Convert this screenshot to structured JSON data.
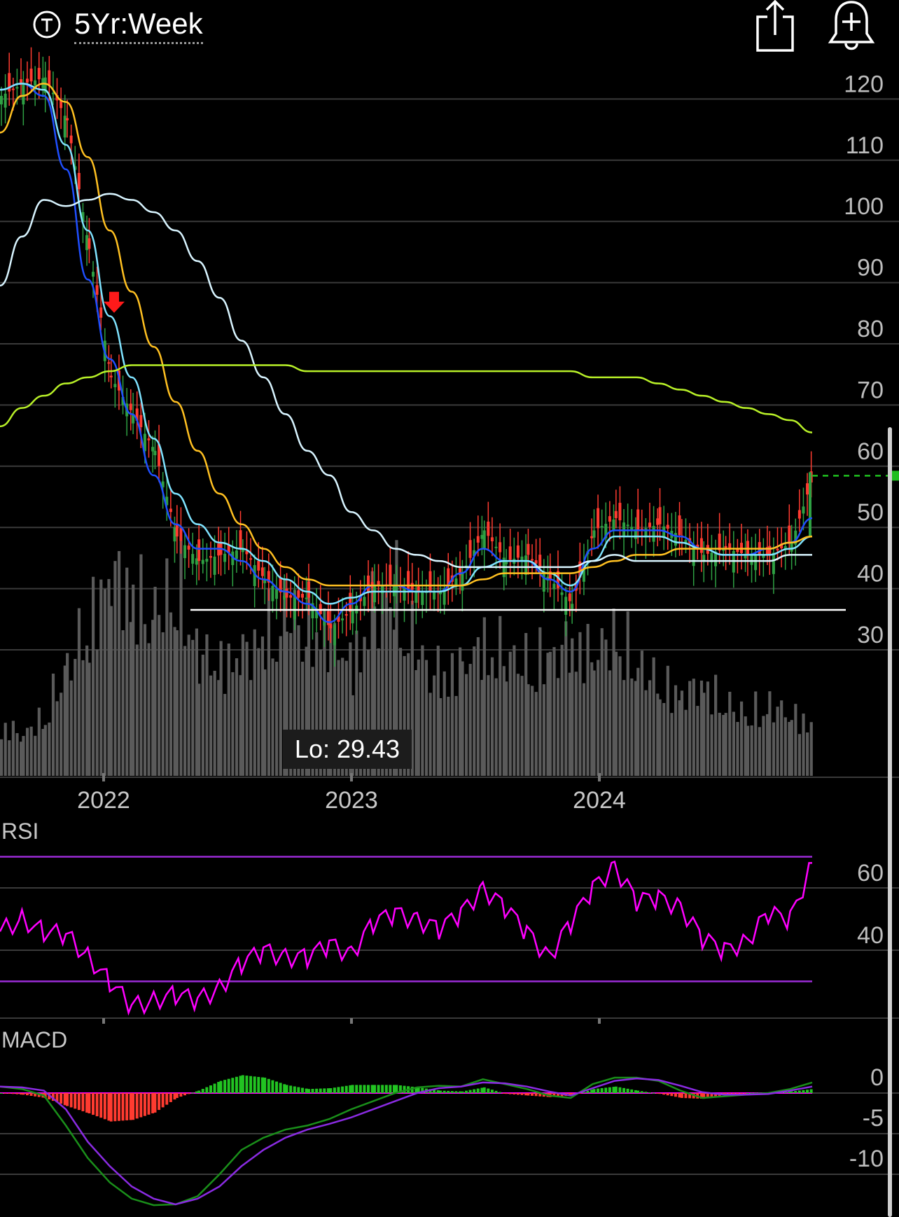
{
  "header": {
    "timeframe_label": "5Yr:Week",
    "timeframe_icon": "ticker-circle-icon",
    "share_icon": "share-icon",
    "alert_icon": "add-alert-bell-icon"
  },
  "colors": {
    "up": "#2ea043",
    "down": "#ff3b30",
    "volume": "#5a5a5a",
    "ma_fast": "#1f4fff",
    "ma_cyan": "#7fe3ff",
    "ma_orange": "#ffc021",
    "ma_white": "#d8f4ff",
    "ma_lime": "#b8f028",
    "rsi": "#ff00ff",
    "rsi_bands": "#9a2bd6",
    "macd": "#1a8f1a",
    "macd_signal": "#8a2be2"
  },
  "chart_data": [
    {
      "type": "candlestick",
      "title": "",
      "yticks": [
        120,
        110,
        100,
        90,
        80,
        70,
        60,
        50,
        40,
        30
      ],
      "ylim": [
        19,
        125
      ],
      "xticks": [
        "2022",
        "2023",
        "2024"
      ],
      "grid": true,
      "series": [
        {
          "kind": "candles",
          "x": [
            "2021-09",
            "2021-10",
            "2021-11",
            "2021-12",
            "2022-01",
            "2022-02",
            "2022-03",
            "2022-04",
            "2022-05",
            "2022-06",
            "2022-07",
            "2022-08",
            "2022-09",
            "2022-10",
            "2022-11",
            "2022-12",
            "2023-01",
            "2023-02",
            "2023-03",
            "2023-04",
            "2023-05",
            "2023-06",
            "2023-07",
            "2023-08",
            "2023-09",
            "2023-10",
            "2023-11",
            "2023-12",
            "2024-01",
            "2024-02",
            "2024-03",
            "2024-04",
            "2024-05",
            "2024-06",
            "2024-07",
            "2024-08",
            "2024-09",
            "2024-10"
          ],
          "close": [
            118,
            120,
            121,
            114,
            93,
            72,
            66,
            60,
            46,
            42,
            43,
            44,
            39,
            36,
            36,
            31,
            34,
            38,
            38,
            37,
            37,
            40,
            47,
            42,
            43,
            39,
            35,
            47,
            49,
            47,
            48,
            46,
            43,
            44,
            43,
            43,
            45,
            56
          ]
        },
        {
          "kind": "volume",
          "x": [
            "2021-09",
            "2021-10",
            "2021-11",
            "2021-12",
            "2022-01",
            "2022-02",
            "2022-03",
            "2022-04",
            "2022-05",
            "2022-06",
            "2022-07",
            "2022-08",
            "2022-09",
            "2022-10",
            "2022-11",
            "2022-12",
            "2023-01",
            "2023-02",
            "2023-03",
            "2023-04",
            "2023-05",
            "2023-06",
            "2023-07",
            "2023-08",
            "2023-09",
            "2023-10",
            "2023-11",
            "2023-12",
            "2024-01",
            "2024-02",
            "2024-03",
            "2024-04",
            "2024-05",
            "2024-06",
            "2024-07",
            "2024-08",
            "2024-09",
            "2024-10"
          ],
          "relative": [
            0.25,
            0.2,
            0.3,
            0.55,
            0.75,
            1.0,
            0.9,
            0.8,
            0.95,
            0.6,
            0.55,
            0.6,
            0.7,
            0.8,
            0.75,
            0.7,
            0.55,
            0.85,
            0.9,
            0.6,
            0.5,
            0.55,
            0.65,
            0.6,
            0.55,
            0.6,
            0.65,
            0.6,
            0.7,
            0.55,
            0.45,
            0.4,
            0.45,
            0.35,
            0.3,
            0.35,
            0.3,
            0.25
          ]
        },
        {
          "kind": "ma",
          "key": "ma_fast",
          "values": [
            119,
            120,
            118,
            106,
            88,
            75,
            66,
            56,
            48,
            44,
            44,
            42,
            39,
            37,
            35,
            32,
            35,
            38,
            38,
            37,
            37,
            40,
            44,
            42,
            42,
            39,
            37,
            44,
            47,
            47,
            47,
            46,
            44,
            43,
            43,
            44,
            45,
            49
          ]
        },
        {
          "kind": "ma",
          "key": "ma_cyan",
          "values": [
            119,
            120,
            119,
            110,
            96,
            82,
            72,
            62,
            53,
            48,
            45,
            44,
            42,
            39,
            37,
            35,
            36,
            37,
            37,
            37,
            37,
            38,
            41,
            42,
            42,
            40,
            38,
            42,
            46,
            46,
            46,
            45,
            44,
            43,
            43,
            43,
            44,
            46
          ]
        },
        {
          "kind": "ma",
          "key": "ma_orange",
          "values": [
            112,
            118,
            120,
            117,
            108,
            96,
            86,
            77,
            68,
            60,
            53,
            48,
            44,
            41,
            39,
            38,
            38,
            38,
            38,
            38,
            38,
            38,
            39,
            40,
            40,
            40,
            40,
            41,
            42,
            43,
            43,
            44,
            44,
            44,
            44,
            44,
            45,
            46
          ]
        },
        {
          "kind": "ma",
          "key": "ma_white",
          "values": [
            87,
            95,
            101,
            100,
            101,
            102,
            101,
            99,
            96,
            91,
            85,
            78,
            72,
            66,
            60,
            56,
            50,
            47,
            44,
            43,
            42,
            41,
            41,
            41,
            41,
            41,
            41,
            42,
            43,
            42,
            42,
            42,
            42,
            42,
            42,
            42,
            43,
            43
          ]
        },
        {
          "kind": "ma",
          "key": "ma_lime",
          "values": [
            64,
            67,
            69,
            71,
            72,
            73,
            74,
            74,
            74,
            74,
            74,
            74,
            74,
            74,
            73,
            73,
            73,
            73,
            73,
            73,
            73,
            73,
            73,
            73,
            73,
            73,
            73,
            72,
            72,
            72,
            71,
            70,
            69,
            68,
            67,
            66,
            65,
            63
          ]
        }
      ],
      "annotations": [
        {
          "type": "support-line",
          "value": 34
        },
        {
          "type": "label",
          "text": "Lo: 29.43",
          "value": 29.43
        },
        {
          "type": "sell-marker",
          "x": "2022-01",
          "value": 83
        },
        {
          "type": "last-price-line",
          "value": 56.5
        }
      ]
    },
    {
      "type": "line",
      "title": "RSI",
      "yticks": [
        60,
        40
      ],
      "ylim": [
        20,
        76
      ],
      "bands": [
        70,
        30
      ],
      "series": [
        {
          "name": "RSI",
          "values": [
            46,
            50,
            46,
            45,
            38,
            30,
            22,
            24,
            26,
            24,
            28,
            36,
            40,
            38,
            38,
            42,
            39,
            49,
            52,
            50,
            47,
            52,
            60,
            54,
            46,
            38,
            49,
            60,
            67,
            56,
            57,
            54,
            44,
            40,
            43,
            52,
            50,
            68
          ]
        }
      ]
    },
    {
      "type": "bar",
      "title": "MACD",
      "yticks": [
        "0",
        "-5",
        "-10"
      ],
      "ylim": [
        -14,
        2.5
      ],
      "series": [
        {
          "name": "MACD",
          "values": [
            0.8,
            0.5,
            -0.3,
            -4,
            -8,
            -11,
            -13,
            -13.8,
            -13.7,
            -12.7,
            -10,
            -7,
            -5.5,
            -4.5,
            -4,
            -3.2,
            -2,
            -1,
            0,
            0.7,
            0.9,
            0.8,
            1.7,
            1.1,
            0.5,
            -0.3,
            -0.6,
            1.1,
            1.9,
            1.9,
            1.5,
            0.3,
            -0.6,
            -0.4,
            -0.2,
            0,
            0.5,
            1.3
          ]
        },
        {
          "name": "Signal",
          "values": [
            0.8,
            0.7,
            0.3,
            -2,
            -6,
            -9,
            -11.5,
            -13,
            -13.7,
            -13,
            -11.5,
            -9,
            -7,
            -5.5,
            -4.5,
            -3.8,
            -3,
            -2,
            -1,
            0,
            0.6,
            0.8,
            1.3,
            1.2,
            0.8,
            0.2,
            -0.3,
            0.6,
            1.5,
            1.8,
            1.6,
            0.9,
            0.1,
            -0.2,
            -0.2,
            -0.1,
            0.3,
            0.8
          ]
        },
        {
          "name": "Histogram",
          "values": [
            0,
            -0.2,
            -0.6,
            -1.6,
            -2.5,
            -3.5,
            -3.3,
            -2.4,
            -0.6,
            0.3,
            1.5,
            2.2,
            1.9,
            1,
            0.5,
            0.6,
            1,
            1,
            1,
            0.7,
            0.3,
            0.2,
            0.7,
            -0.1,
            -0.3,
            -0.5,
            -0.3,
            0.5,
            0.8,
            0.3,
            -0.1,
            -0.6,
            -0.7,
            -0.2,
            0,
            0.1,
            0.2,
            0.5
          ]
        }
      ]
    }
  ]
}
